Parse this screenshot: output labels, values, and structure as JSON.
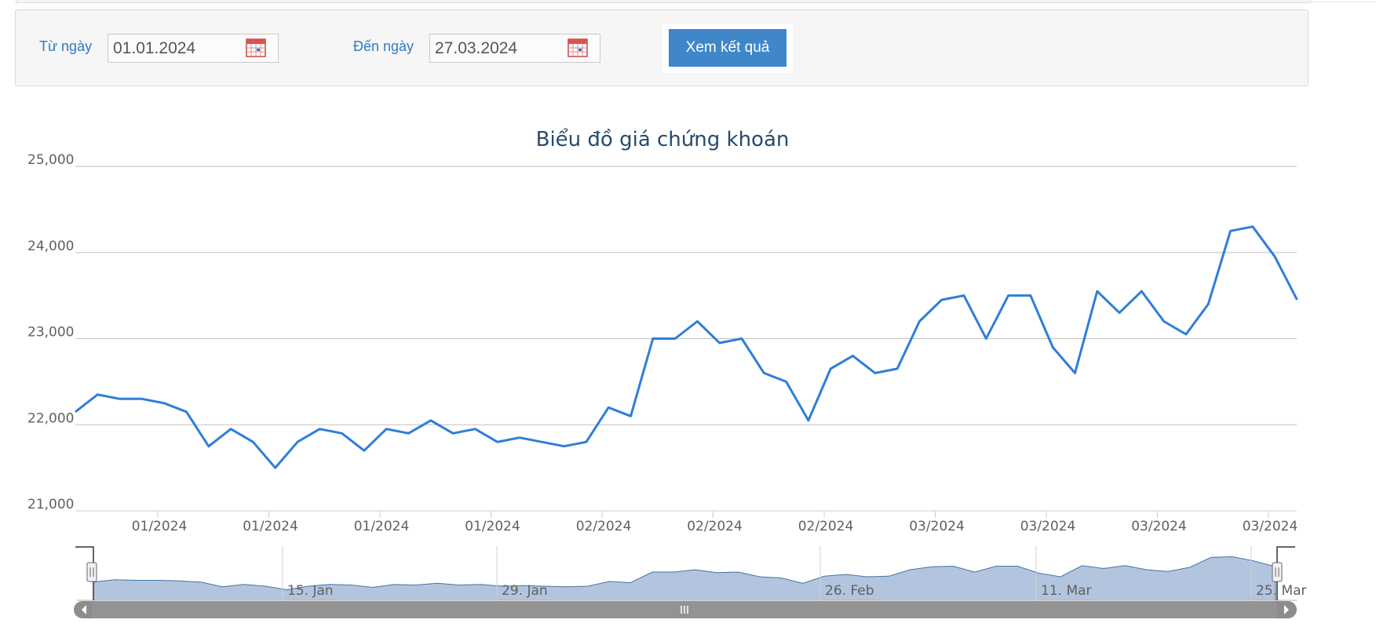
{
  "filter": {
    "from_label": "Từ ngày",
    "from_value": "01.01.2024",
    "to_label": "Đến ngày",
    "to_value": "27.03.2024",
    "submit_label": "Xem kết quả"
  },
  "colors": {
    "line": "#2f7ed8",
    "grid": "#c0c0c0",
    "title": "#274b6d",
    "navigator_fill": "#b3c5de",
    "navigator_line": "#4572a7",
    "scrollbar": "#8c8c8c"
  },
  "chart_data": {
    "type": "line",
    "title": "Biểu đồ giá chứng khoán",
    "xlabel": "",
    "ylabel": "",
    "ylim": [
      21000,
      25000
    ],
    "y_ticks": [
      "25,000",
      "24,000",
      "23,000",
      "22,000",
      "21,000"
    ],
    "y_tick_values": [
      25000,
      24000,
      23000,
      22000,
      21000
    ],
    "x_tick_labels": [
      "01/2024",
      "01/2024",
      "01/2024",
      "01/2024",
      "02/2024",
      "02/2024",
      "02/2024",
      "03/2024",
      "03/2024",
      "03/2024",
      "03/2024"
    ],
    "grid": true,
    "legend": "none",
    "series": [
      {
        "values": [
          22150,
          22350,
          22300,
          22300,
          22250,
          22150,
          21750,
          21950,
          21800,
          21500,
          21800,
          21950,
          21900,
          21700,
          21950,
          21900,
          22050,
          21900,
          21950,
          21800,
          21850,
          21800,
          21750,
          21800,
          22200,
          22100,
          23000,
          23000,
          23200,
          22950,
          23000,
          22600,
          22500,
          22050,
          22650,
          22800,
          22600,
          22650,
          23200,
          23450,
          23500,
          23000,
          23500,
          23500,
          22900,
          22600,
          23550,
          23300,
          23550,
          23200,
          23050,
          23400,
          24250,
          24300,
          23950,
          23450
        ]
      }
    ],
    "navigator_labels": [
      "15. Jan",
      "29. Jan",
      "26. Feb",
      "11. Mar",
      "25. Mar"
    ]
  }
}
